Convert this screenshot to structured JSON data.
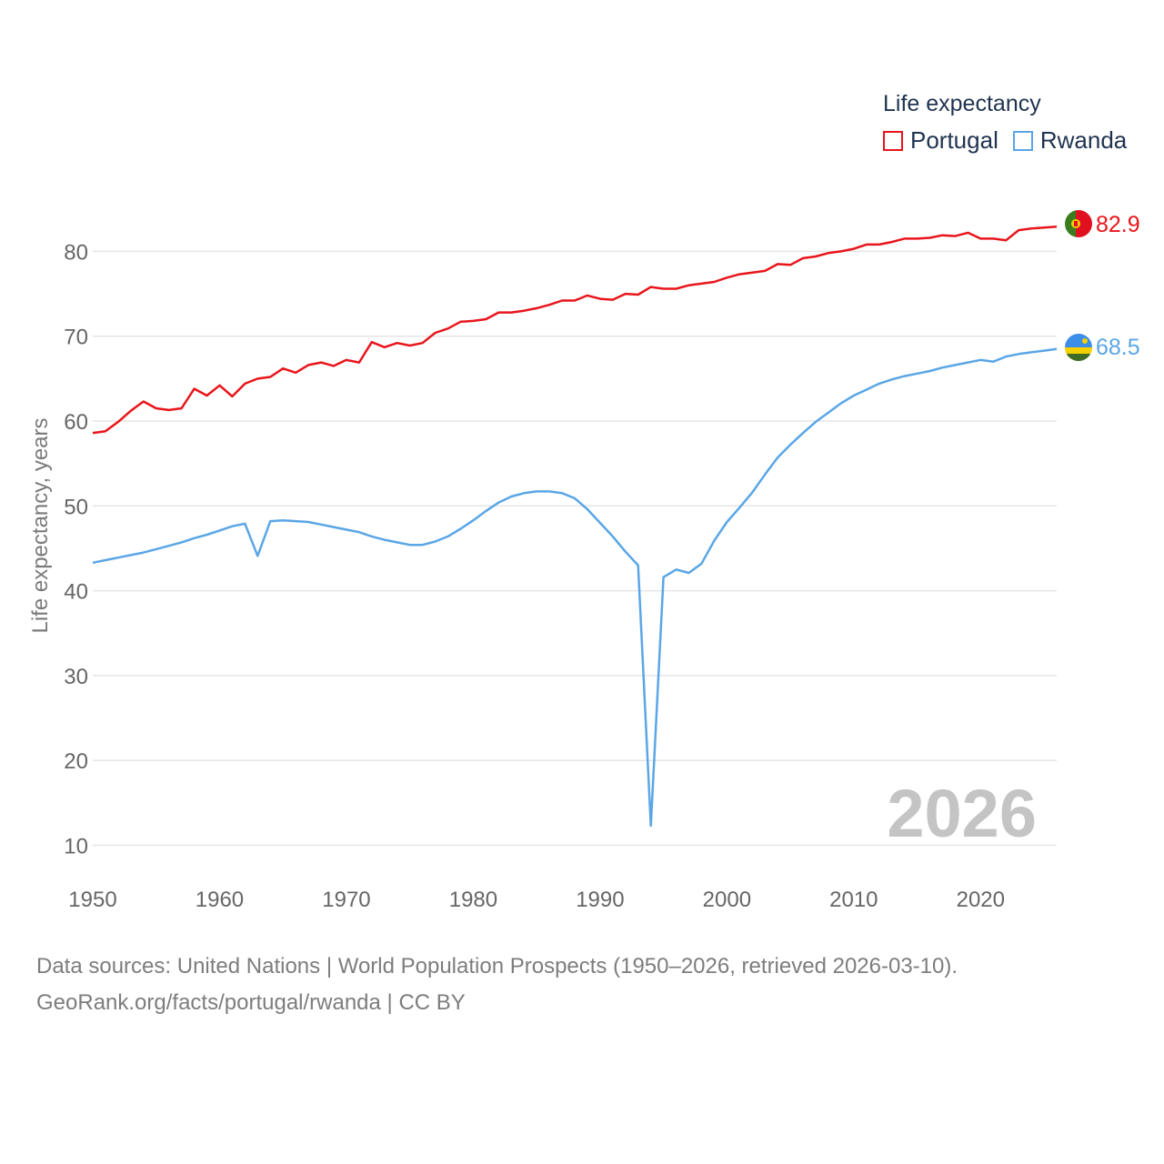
{
  "legend": {
    "title": "Life expectancy",
    "items": [
      {
        "name": "Portugal",
        "color": "#e8151b"
      },
      {
        "name": "Rwanda",
        "color": "#5aa6e6"
      }
    ]
  },
  "footer": {
    "line1": "Data sources: United Nations | World Population Prospects (1950–2026, retrieved 2026-03-10).",
    "line2": "GeoRank.org/facts/portugal/rwanda | CC BY"
  },
  "chart_data": {
    "type": "line",
    "title": "Life expectancy",
    "ylabel": "Life expectancy, years",
    "xlabel": "",
    "year_watermark": "2026",
    "xlim": [
      1950,
      2026
    ],
    "ylim": [
      7,
      90
    ],
    "xticks": [
      1950,
      1960,
      1970,
      1980,
      1990,
      2000,
      2010,
      2020
    ],
    "yticks": [
      10,
      20,
      30,
      40,
      50,
      60,
      70,
      80
    ],
    "grid": true,
    "legend_position": "top-right",
    "x": [
      1950,
      1951,
      1952,
      1953,
      1954,
      1955,
      1956,
      1957,
      1958,
      1959,
      1960,
      1961,
      1962,
      1963,
      1964,
      1965,
      1966,
      1967,
      1968,
      1969,
      1970,
      1971,
      1972,
      1973,
      1974,
      1975,
      1976,
      1977,
      1978,
      1979,
      1980,
      1981,
      1982,
      1983,
      1984,
      1985,
      1986,
      1987,
      1988,
      1989,
      1990,
      1991,
      1992,
      1993,
      1994,
      1995,
      1996,
      1997,
      1998,
      1999,
      2000,
      2001,
      2002,
      2003,
      2004,
      2005,
      2006,
      2007,
      2008,
      2009,
      2010,
      2011,
      2012,
      2013,
      2014,
      2015,
      2016,
      2017,
      2018,
      2019,
      2020,
      2021,
      2022,
      2023,
      2024,
      2025,
      2026
    ],
    "series": [
      {
        "name": "Portugal",
        "color": "#e8151b",
        "end_label": "82.9",
        "values": [
          58.6,
          58.8,
          59.9,
          61.2,
          62.3,
          61.5,
          61.3,
          61.5,
          63.8,
          63.0,
          64.2,
          62.9,
          64.4,
          65.0,
          65.2,
          66.2,
          65.7,
          66.6,
          66.9,
          66.5,
          67.2,
          66.9,
          69.3,
          68.7,
          69.2,
          68.9,
          69.2,
          70.4,
          70.9,
          71.7,
          71.8,
          72.0,
          72.8,
          72.8,
          73.0,
          73.3,
          73.7,
          74.2,
          74.2,
          74.8,
          74.4,
          74.3,
          75.0,
          74.9,
          75.8,
          75.6,
          75.6,
          76.0,
          76.2,
          76.4,
          76.9,
          77.3,
          77.5,
          77.7,
          78.5,
          78.4,
          79.2,
          79.4,
          79.8,
          80.0,
          80.3,
          80.8,
          80.8,
          81.1,
          81.5,
          81.5,
          81.6,
          81.9,
          81.8,
          82.2,
          81.5,
          81.5,
          81.3,
          82.5,
          82.7,
          82.8,
          82.9
        ]
      },
      {
        "name": "Rwanda",
        "color": "#5aa6e6",
        "end_label": "68.5",
        "values": [
          43.3,
          43.6,
          43.9,
          44.2,
          44.5,
          44.9,
          45.3,
          45.7,
          46.2,
          46.6,
          47.1,
          47.6,
          47.9,
          44.1,
          48.2,
          48.3,
          48.2,
          48.1,
          47.8,
          47.5,
          47.2,
          46.9,
          46.4,
          46.0,
          45.7,
          45.4,
          45.4,
          45.8,
          46.4,
          47.3,
          48.3,
          49.4,
          50.4,
          51.1,
          51.5,
          51.7,
          51.7,
          51.5,
          50.9,
          49.6,
          48.0,
          46.4,
          44.6,
          43.0,
          12.3,
          41.6,
          42.5,
          42.1,
          43.2,
          45.9,
          48.1,
          49.8,
          51.6,
          53.7,
          55.7,
          57.2,
          58.6,
          59.9,
          61.0,
          62.1,
          63.0,
          63.7,
          64.4,
          64.9,
          65.3,
          65.6,
          65.9,
          66.3,
          66.6,
          66.9,
          67.2,
          67.0,
          67.6,
          67.9,
          68.1,
          68.3,
          68.5
        ]
      }
    ]
  }
}
